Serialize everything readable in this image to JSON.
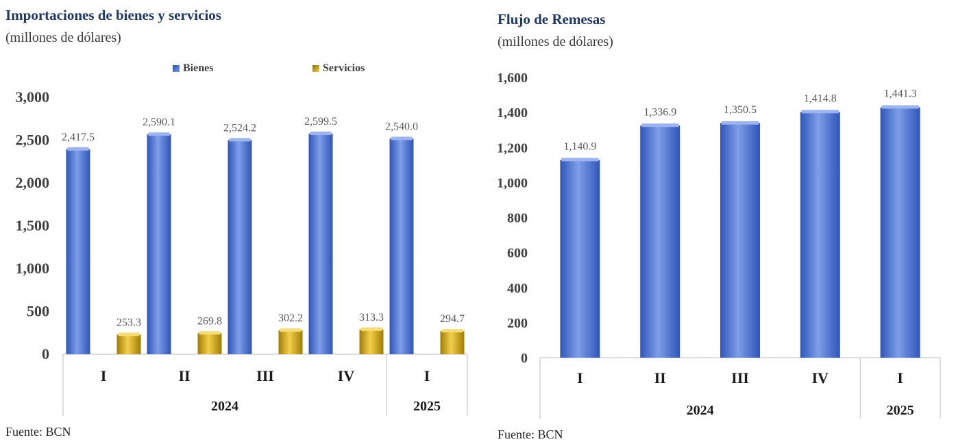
{
  "charts": {
    "imports": {
      "title": "Importaciones de bienes y servicios",
      "subtitle": "(millones de dólares)",
      "source": "Fuente: BCN"
    },
    "remittances": {
      "title": "Flujo de Remesas",
      "subtitle": "(millones de dólares)",
      "source": "Fuente: BCN"
    }
  },
  "colors": {
    "bienes": "#4a6fd0",
    "servicios": "#d4a60c",
    "axis_text": "#404040",
    "label_text": "#595959",
    "grid_line": "#bfbfbf"
  },
  "chart_data": [
    {
      "type": "bar",
      "title": "Importaciones de bienes y servicios",
      "subtitle": "(millones de dólares)",
      "categories": [
        "I",
        "II",
        "III",
        "IV",
        "I"
      ],
      "groups": [
        {
          "label": "2024",
          "span": 4
        },
        {
          "label": "2025",
          "span": 1
        }
      ],
      "series": [
        {
          "name": "Bienes",
          "values": [
            2417.5,
            2590.1,
            2524.2,
            2599.5,
            2540.0
          ],
          "labels": [
            "2,417.5",
            "2,590.1",
            "2,524.2",
            "2,599.5",
            "2,540.0"
          ]
        },
        {
          "name": "Servicios",
          "values": [
            253.3,
            269.8,
            302.2,
            313.3,
            294.7
          ],
          "labels": [
            "253.3",
            "269.8",
            "302.2",
            "313.3",
            "294.7"
          ]
        }
      ],
      "yticks": [
        "0",
        "500",
        "1,000",
        "1,500",
        "2,000",
        "2,500",
        "3,000"
      ],
      "ylim": [
        0,
        3000
      ],
      "legend": "top",
      "grid": false
    },
    {
      "type": "bar",
      "title": "Flujo de Remesas",
      "subtitle": "(millones de dólares)",
      "categories": [
        "I",
        "II",
        "III",
        "IV",
        "I"
      ],
      "groups": [
        {
          "label": "2024",
          "span": 4
        },
        {
          "label": "2025",
          "span": 1
        }
      ],
      "series": [
        {
          "values": [
            1140.9,
            1336.9,
            1350.5,
            1414.8,
            1441.3
          ],
          "labels": [
            "1,140.9",
            "1,336.9",
            "1,350.5",
            "1,414.8",
            "1,441.3"
          ]
        }
      ],
      "yticks": [
        "0",
        "200",
        "400",
        "600",
        "800",
        "1,000",
        "1,200",
        "1,400",
        "1,600"
      ],
      "ylim": [
        0,
        1600
      ],
      "grid": false
    }
  ]
}
